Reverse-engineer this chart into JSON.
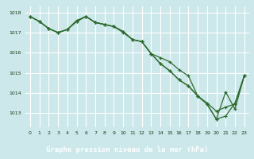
{
  "background_color": "#cce8ea",
  "plot_bg_color": "#cce8ea",
  "grid_color": "#ffffff",
  "line_color": "#2d6a2d",
  "x_ticks": [
    0,
    1,
    2,
    3,
    4,
    5,
    6,
    7,
    8,
    9,
    10,
    11,
    12,
    13,
    14,
    15,
    16,
    17,
    18,
    19,
    20,
    21,
    22,
    23
  ],
  "xlim": [
    -0.5,
    23.5
  ],
  "ylim": [
    1012.3,
    1018.3
  ],
  "yticks": [
    1013,
    1014,
    1015,
    1016,
    1017,
    1018
  ],
  "xlabel": "Graphe pression niveau de la mer (hPa)",
  "xlabel_bg": "#3a6b3a",
  "xlabel_fg": "#ffffff",
  "series1": [
    1017.8,
    1017.55,
    1017.2,
    1017.0,
    1017.15,
    1017.55,
    1017.8,
    1017.5,
    1017.4,
    1017.3,
    1017.0,
    1016.65,
    1016.55,
    1015.95,
    1015.75,
    1015.55,
    1015.15,
    1014.85,
    1013.85,
    1013.5,
    1013.1,
    1013.3,
    1013.45,
    1014.85
  ],
  "series2": [
    1017.8,
    1017.55,
    1017.2,
    1017.0,
    1017.15,
    1017.55,
    1017.8,
    1017.5,
    1017.4,
    1017.3,
    1017.05,
    1016.65,
    1016.55,
    1015.95,
    1015.45,
    1015.1,
    1014.65,
    1014.35,
    1013.85,
    1013.45,
    1012.7,
    1012.85,
    1013.5,
    1014.85
  ],
  "series3": [
    1017.8,
    1017.55,
    1017.2,
    1017.0,
    1017.15,
    1017.6,
    1017.8,
    1017.5,
    1017.4,
    1017.3,
    1017.05,
    1016.65,
    1016.55,
    1015.95,
    1015.45,
    1015.1,
    1014.65,
    1014.35,
    1013.85,
    1013.45,
    1012.7,
    1014.05,
    1013.2,
    1014.85
  ]
}
